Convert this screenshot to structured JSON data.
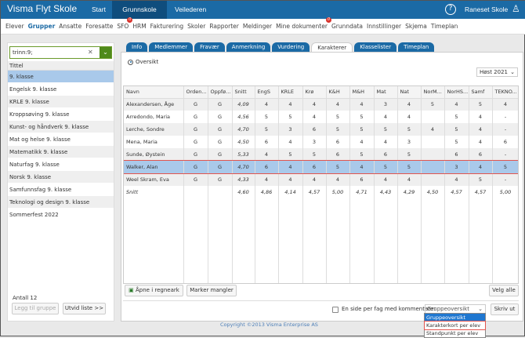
{
  "header": {
    "brand": "Visma Flyt Skole",
    "nav": [
      "Start",
      "Grunnskole",
      "Veilederen"
    ],
    "active_nav": "Grunnskole",
    "school": "Raneset Skole",
    "help_icon": "help-icon",
    "user_icon": "user-icon"
  },
  "subnav": [
    {
      "label": "Elever"
    },
    {
      "label": "Grupper",
      "active": true
    },
    {
      "label": "Ansatte"
    },
    {
      "label": "Foresatte"
    },
    {
      "label": "SFO",
      "badge": "0"
    },
    {
      "label": "HRM"
    },
    {
      "label": "Fakturering"
    },
    {
      "label": "Skoler"
    },
    {
      "label": "Rapporter"
    },
    {
      "label": "Meldinger"
    },
    {
      "label": "Mine dokumenter",
      "badge": "0"
    },
    {
      "label": "Grunndata"
    },
    {
      "label": "Innstillinger"
    },
    {
      "label": "Skjema"
    },
    {
      "label": "Timeplan"
    }
  ],
  "left": {
    "search_value": "trinn:9;",
    "column": "Tittel",
    "items": [
      "9. klasse",
      "Engelsk 9. klasse",
      "KRLE 9. klasse",
      "Kroppsøving 9. klasse",
      "Kunst- og håndverk 9. klasse",
      "Mat og helse 9. klasse",
      "Matematikk 9. klasse",
      "Naturfag 9. klasse",
      "Norsk 9. klasse",
      "Samfunnsfag 9. klasse",
      "Teknologi og design 9. klasse",
      "Sommerfest 2022"
    ],
    "count": "Antall 12",
    "add_btn": "Legg til gruppe",
    "expand_btn": "Utvid liste >>"
  },
  "tabs": [
    "Info",
    "Medlemmer",
    "Fravær",
    "Anmerkning",
    "Vurdering",
    "Karakterer",
    "Klasselister",
    "Timeplan"
  ],
  "active_tab": "Karakterer",
  "main": {
    "radio": "Oversikt",
    "term": "Høst 2021",
    "columns": [
      "Navn",
      "Orden...",
      "Oppfø...",
      "Snitt",
      "EngS",
      "KRLE",
      "Krø",
      "K&H",
      "M&H",
      "Mat",
      "Nat",
      "NorM...",
      "NorHS...",
      "Samf",
      "TEKNO..."
    ],
    "rows": [
      [
        "Alexandersen, Åge",
        "G",
        "G",
        "4,09",
        "4",
        "4",
        "4",
        "4",
        "4",
        "3",
        "4",
        "5",
        "4",
        "5",
        "4"
      ],
      [
        "Arredondo, Maria",
        "G",
        "G",
        "4,56",
        "5",
        "5",
        "4",
        "5",
        "5",
        "4",
        "4",
        "",
        "5",
        "4",
        "-"
      ],
      [
        "Lerche, Sondre",
        "G",
        "G",
        "4,70",
        "5",
        "3",
        "6",
        "5",
        "5",
        "5",
        "5",
        "4",
        "5",
        "4",
        "-"
      ],
      [
        "Mena, Maria",
        "G",
        "G",
        "4,50",
        "6",
        "4",
        "3",
        "6",
        "4",
        "4",
        "3",
        "",
        "5",
        "4",
        "6"
      ],
      [
        "Sunde, Øystein",
        "G",
        "G",
        "5,33",
        "4",
        "5",
        "5",
        "6",
        "5",
        "6",
        "5",
        "",
        "6",
        "6",
        "-"
      ],
      [
        "Walker, Alan",
        "G",
        "G",
        "4,70",
        "6",
        "4",
        "6",
        "5",
        "4",
        "5",
        "5",
        "",
        "3",
        "4",
        "5"
      ],
      [
        "Weel Skram, Eva",
        "G",
        "G",
        "4,33",
        "4",
        "4",
        "4",
        "4",
        "6",
        "4",
        "4",
        "",
        "4",
        "5",
        "-"
      ]
    ],
    "selected_row": 5,
    "avg": [
      "Snitt",
      "",
      "",
      "4,60",
      "4,86",
      "4,14",
      "4,57",
      "5,00",
      "4,71",
      "4,43",
      "4,29",
      "4,50",
      "4,57",
      "4,57",
      "5,00"
    ],
    "open_sheet": "Åpne i regneark",
    "mark_missing": "Marker mangler",
    "select_all": "Velg alle",
    "checkbox_label": "En side per fag med kommentarer",
    "report_select": "Gruppeoversikt",
    "print": "Skriv ut",
    "dropdown": [
      "Gruppeoversikt",
      "Karakterkort per elev",
      "Standpunkt per elev"
    ]
  },
  "footer": "Copyright ©2013 Visma Enterprise AS"
}
